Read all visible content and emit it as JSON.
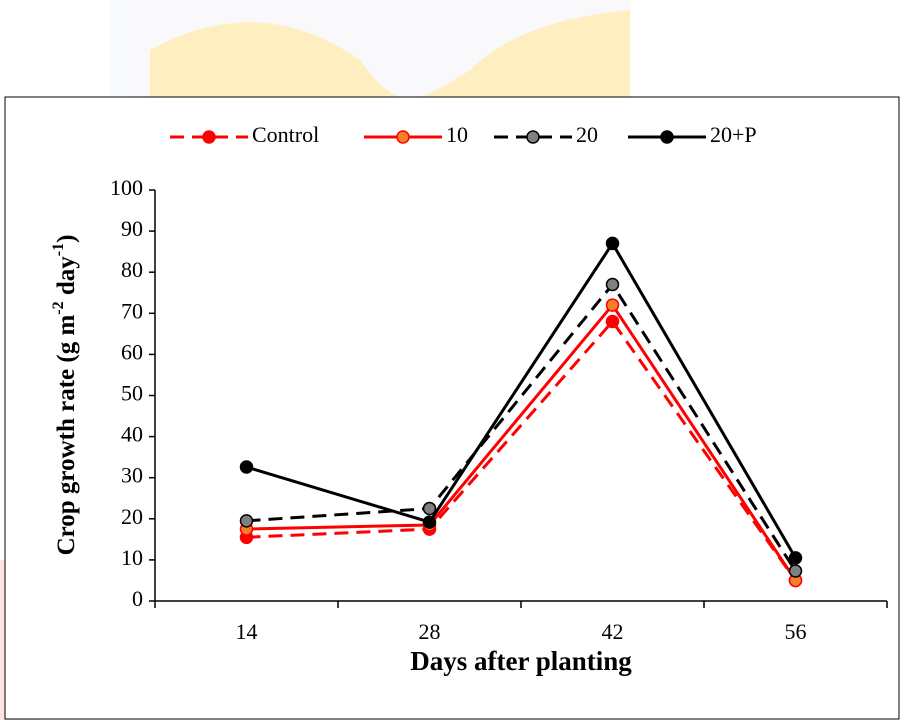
{
  "chart_data": {
    "type": "line",
    "xlabel": "Days after planting",
    "ylabel": [
      "Crop growth rate (g m",
      "-2",
      " day",
      "-1",
      ")"
    ],
    "categories": [
      "14",
      "28",
      "42",
      "56"
    ],
    "ylim": [
      0,
      100
    ],
    "yticks": [
      0,
      10,
      20,
      30,
      40,
      50,
      60,
      70,
      80,
      90,
      100
    ],
    "legend": "top",
    "series": [
      {
        "name": "Control",
        "color": "#ff0000",
        "marker_color": "#ff0000",
        "dash": true,
        "values": [
          15.5,
          17.5,
          68,
          5
        ]
      },
      {
        "name": "10",
        "color": "#ff0000",
        "marker_color": "#f4802a",
        "dash": false,
        "values": [
          17.5,
          18.5,
          72,
          5
        ]
      },
      {
        "name": "20",
        "color": "#000000",
        "marker_color": "#808080",
        "dash": true,
        "values": [
          19.5,
          22.5,
          77,
          7.3
        ]
      },
      {
        "name": "20+P",
        "color": "#000000",
        "marker_color": "#000000",
        "dash": false,
        "values": [
          32.6,
          19.2,
          87,
          10.5
        ]
      }
    ]
  }
}
